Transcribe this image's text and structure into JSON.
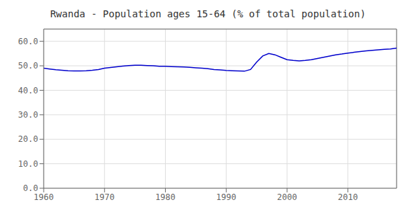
{
  "chart_data": {
    "type": "line",
    "title": "Rwanda - Population ages 15-64 (% of total population)",
    "x": [
      1960,
      1961,
      1962,
      1963,
      1964,
      1965,
      1966,
      1967,
      1968,
      1969,
      1970,
      1971,
      1972,
      1973,
      1974,
      1975,
      1976,
      1977,
      1978,
      1979,
      1980,
      1981,
      1982,
      1983,
      1984,
      1985,
      1986,
      1987,
      1988,
      1989,
      1990,
      1991,
      1992,
      1993,
      1994,
      1995,
      1996,
      1997,
      1998,
      1999,
      2000,
      2001,
      2002,
      2003,
      2004,
      2005,
      2006,
      2007,
      2008,
      2009,
      2010,
      2011,
      2012,
      2013,
      2014,
      2015,
      2016,
      2017,
      2018
    ],
    "values": [
      49.0,
      48.7,
      48.4,
      48.2,
      48.0,
      47.9,
      47.9,
      48.0,
      48.2,
      48.5,
      49.0,
      49.3,
      49.6,
      49.9,
      50.1,
      50.2,
      50.2,
      50.1,
      50.0,
      49.8,
      49.8,
      49.7,
      49.6,
      49.5,
      49.4,
      49.2,
      49.0,
      48.8,
      48.5,
      48.3,
      48.1,
      48.0,
      47.9,
      47.8,
      48.5,
      51.5,
      54.0,
      55.0,
      54.5,
      53.5,
      52.5,
      52.2,
      52.0,
      52.2,
      52.5,
      53.0,
      53.5,
      54.0,
      54.5,
      54.8,
      55.2,
      55.5,
      55.8,
      56.1,
      56.3,
      56.5,
      56.7,
      56.9,
      57.2
    ],
    "color": "#0000cc",
    "xlim": [
      1960,
      2018
    ],
    "ylim": [
      0.0,
      65.0
    ],
    "xticks": [
      1960,
      1970,
      1980,
      1990,
      2000,
      2010
    ],
    "yticks": [
      {
        "value": 0,
        "label": "0.0"
      },
      {
        "value": 10,
        "label": "10.0"
      },
      {
        "value": 20,
        "label": "20.0"
      },
      {
        "value": 30,
        "label": "30.0"
      },
      {
        "value": 40,
        "label": "40.0"
      },
      {
        "value": 50,
        "label": "50.0"
      },
      {
        "value": 60,
        "label": "60.0"
      }
    ],
    "grid": true
  }
}
